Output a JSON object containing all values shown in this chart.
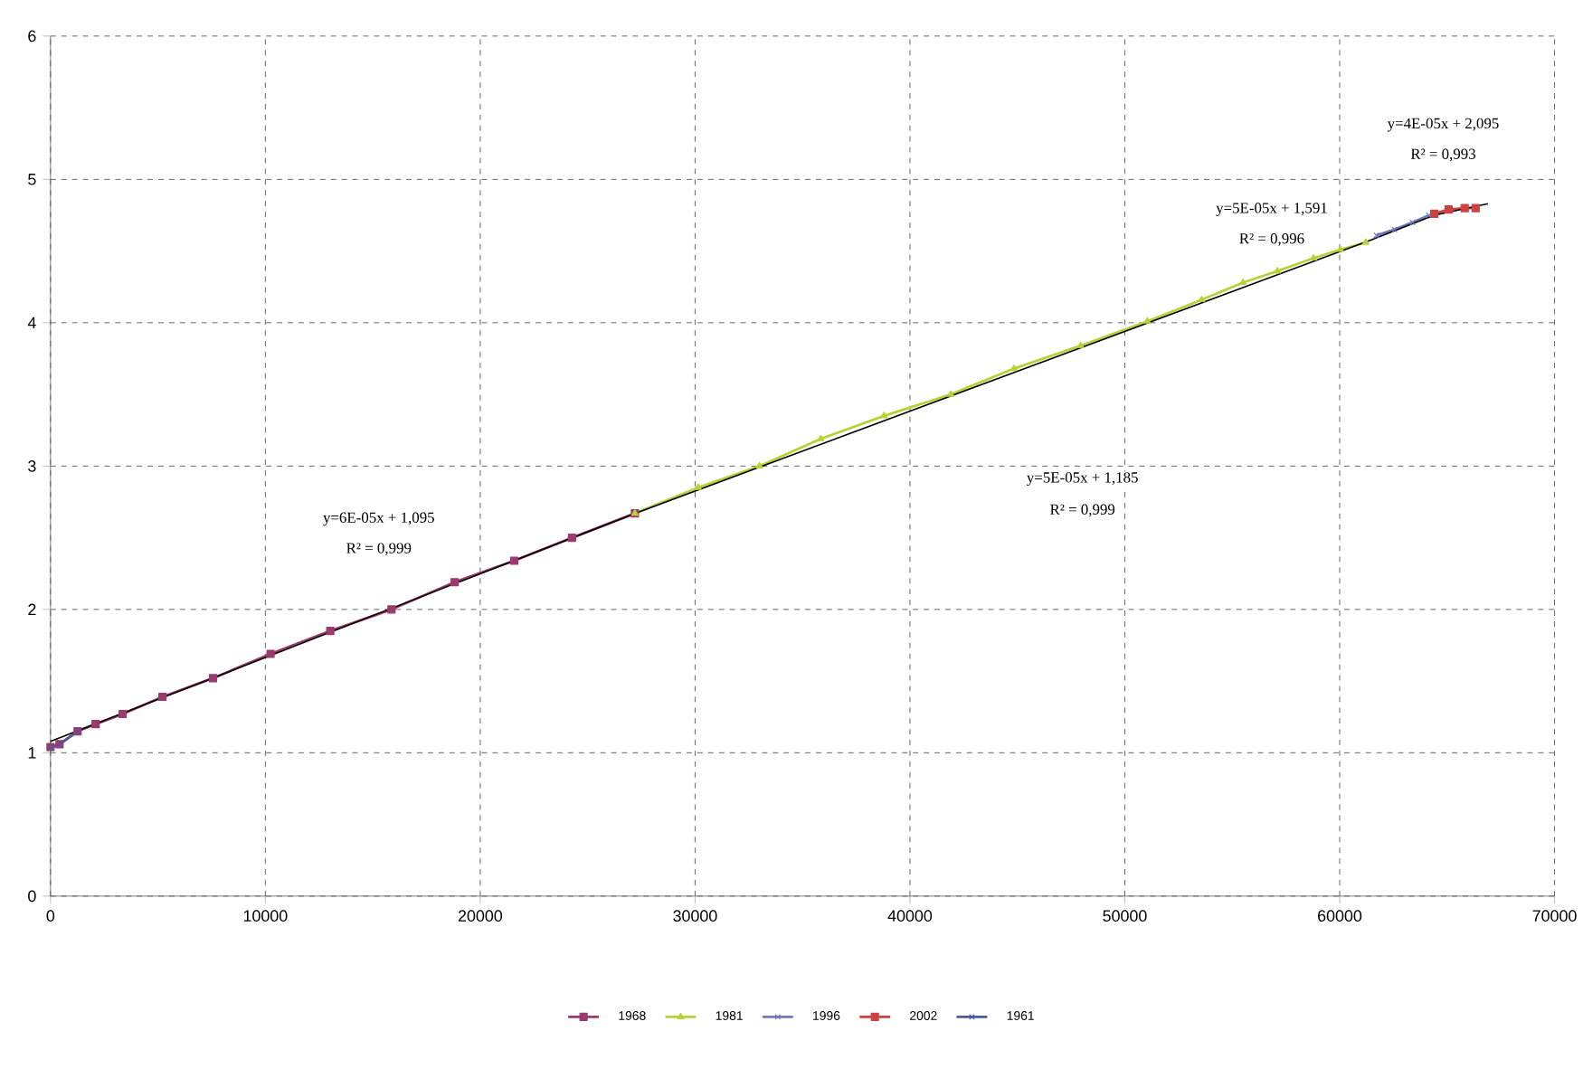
{
  "chart_data": {
    "type": "line",
    "xlim": [
      0,
      70000
    ],
    "ylim": [
      0,
      6
    ],
    "xticks": [
      0,
      10000,
      20000,
      30000,
      40000,
      50000,
      60000,
      70000
    ],
    "yticks": [
      0,
      1,
      2,
      3,
      4,
      5,
      6
    ],
    "grid": true,
    "legend": "bottom",
    "series": [
      {
        "name": "1961",
        "color": "#4a5a9a",
        "marker": "cross",
        "x": [
          0,
          420,
          1260
        ],
        "values": [
          1.03,
          1.06,
          1.15
        ]
      },
      {
        "name": "1968",
        "color": "#9b3a6e",
        "marker": "square",
        "x": [
          0,
          420,
          1260,
          2100,
          3360,
          5210,
          7560,
          10240,
          13020,
          15870,
          18810,
          21580,
          24270,
          27200
        ],
        "values": [
          1.04,
          1.06,
          1.15,
          1.2,
          1.27,
          1.39,
          1.52,
          1.69,
          1.85,
          2.0,
          2.19,
          2.34,
          2.5,
          2.67
        ]
      },
      {
        "name": "1981",
        "color": "#b5d334",
        "marker": "triangle",
        "x": [
          27200,
          30140,
          33000,
          35850,
          38790,
          41900,
          44840,
          47940,
          51050,
          53570,
          55500,
          57100,
          58780,
          60030,
          61210
        ],
        "values": [
          2.67,
          2.85,
          3.0,
          3.19,
          3.35,
          3.5,
          3.68,
          3.84,
          4.01,
          4.16,
          4.28,
          4.36,
          4.45,
          4.51,
          4.56
        ]
      },
      {
        "name": "1996",
        "color": "#6f78b8",
        "marker": "cross",
        "x": [
          61710,
          62550,
          63390,
          64150
        ],
        "values": [
          4.61,
          4.65,
          4.7,
          4.75
        ]
      },
      {
        "name": "2002",
        "color": "#d04040",
        "marker": "square",
        "x": [
          64400,
          65070,
          65820,
          66330
        ],
        "values": [
          4.76,
          4.79,
          4.8,
          4.8
        ]
      },
      {
        "type": "line",
        "color": "#000000",
        "marker": "none",
        "x": [
          0,
          27200,
          61500,
          64400,
          66900
        ],
        "values": [
          1.08,
          2.67,
          4.58,
          4.75,
          4.83
        ]
      }
    ],
    "annotations": [
      "y=6E-05x + 1,095",
      "R² = 0,999",
      "y=5E-05x + 1,185",
      "R² = 0,999",
      "y=5E-05x + 1,591",
      "R² = 0,996",
      "y=4E-05x + 2,095",
      "R² = 0,993"
    ]
  }
}
